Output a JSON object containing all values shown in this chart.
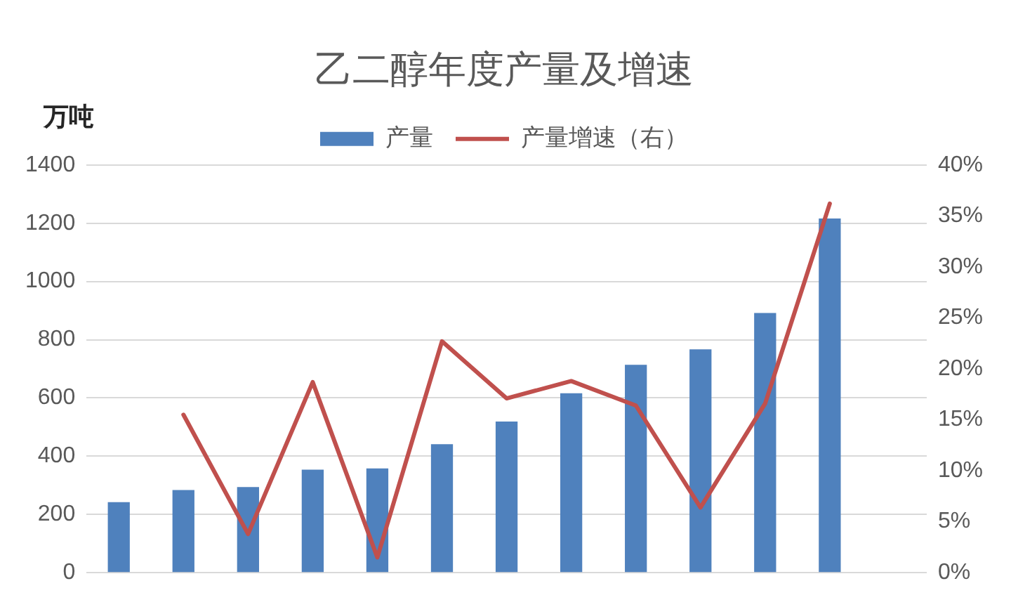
{
  "chart_data": {
    "type": "bar",
    "title": "乙二醇年度产量及增速",
    "ylabel": "万吨",
    "categories": [
      null,
      null,
      null,
      null,
      null,
      null,
      null,
      null,
      null,
      null,
      null,
      null,
      null
    ],
    "series": [
      {
        "name": "产量",
        "color": "#4f81bd",
        "values": [
          242,
          284,
          294,
          354,
          358,
          441,
          519,
          616,
          714,
          767,
          892,
          1216,
          null
        ]
      },
      {
        "name": "产量增速（右）",
        "type": "line",
        "axis": "y2",
        "color": "#c0504d",
        "values": [
          null,
          15.5,
          3.8,
          18.7,
          1.5,
          22.7,
          17.1,
          18.8,
          16.4,
          6.4,
          16.6,
          36.2,
          null
        ]
      }
    ],
    "ylim": [
      0,
      1400
    ],
    "yticks": [
      0,
      200,
      400,
      600,
      800,
      1000,
      1200,
      1400
    ],
    "y2lim": [
      0,
      40
    ],
    "y2ticks": [
      {
        "value": 0,
        "label": "0%"
      },
      {
        "value": 5,
        "label": "5%"
      },
      {
        "value": 10,
        "label": "10%"
      },
      {
        "value": 15,
        "label": "15%"
      },
      {
        "value": 20,
        "label": "20%"
      },
      {
        "value": 25,
        "label": "25%"
      },
      {
        "value": 30,
        "label": "30%"
      },
      {
        "value": 35,
        "label": "35%"
      },
      {
        "value": 40,
        "label": "40%"
      }
    ],
    "grid": "y",
    "legend": "top",
    "marker": "none"
  }
}
